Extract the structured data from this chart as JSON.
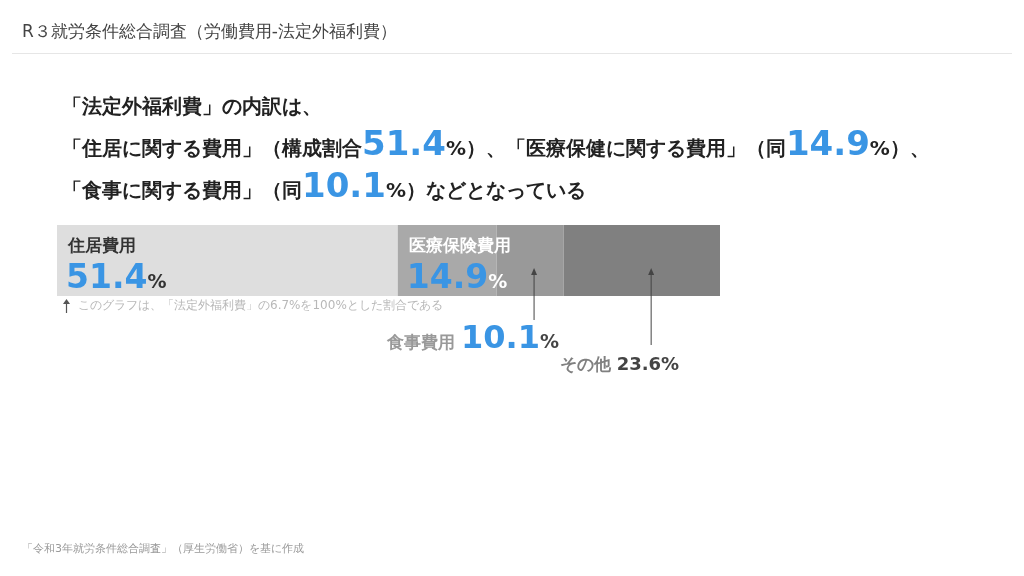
{
  "chart_data": {
    "type": "bar",
    "orientation": "horizontal",
    "stacked": true,
    "title": "R３就労条件総合調査（労働費用-法定外福利費）",
    "subtitle": "「法定外福利費」の内訳は、「住居に関する費用」（構成割合51.4%）、「医療保健に関する費用」（同14.9%）、「食事に関する費用」（同10.1%）などとなっている",
    "categories": [
      null
    ],
    "series": [
      {
        "name": "住居費用",
        "color": "#dedede",
        "values": [
          51.4
        ],
        "value_labels": [
          "51.4%"
        ]
      },
      {
        "name": "医療保険費用",
        "color": "#a9a9a9",
        "values": [
          14.9
        ],
        "value_labels": [
          "14.9%"
        ]
      },
      {
        "name": "食事費用",
        "color": "#999999",
        "values": [
          10.1
        ],
        "value_labels": [
          "10.1%"
        ]
      },
      {
        "name": "その他",
        "color": "#808080",
        "values": [
          23.6
        ],
        "value_labels": [
          "23.6%"
        ]
      }
    ],
    "tick_labels": false,
    "annotations": [
      "このグラフは、「法定外福利費」の6.7%を100%とした割合である",
      "「令和3年就労条件総合調査」（厚生労働省）を基に作成"
    ]
  }
}
